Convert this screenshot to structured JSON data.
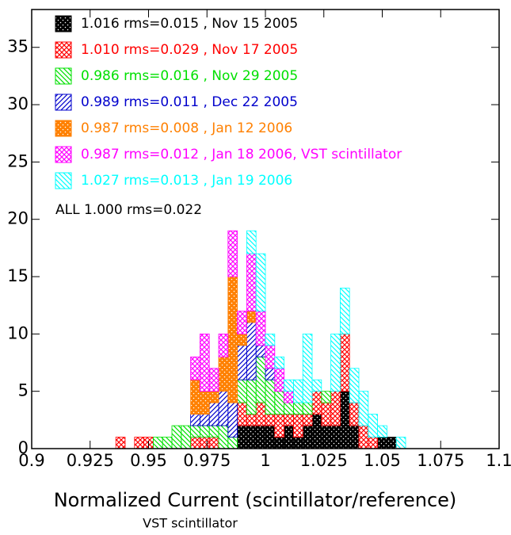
{
  "chart_data": {
    "type": "histogram",
    "xlabel": "Normalized Current (scintillator/reference)",
    "subtitle": "VST scintillator",
    "annotation": "ALL 1.000  rms=0.022",
    "stacked": true,
    "xlim": [
      0.9,
      1.1
    ],
    "ylim": [
      0,
      38.3
    ],
    "xticks": [
      0.9,
      0.925,
      0.95,
      0.975,
      1,
      1.025,
      1.05,
      1.075,
      1.1
    ],
    "yticks": [
      0,
      5,
      10,
      15,
      20,
      25,
      30,
      35
    ],
    "bins": [
      0.936,
      0.94,
      0.944,
      0.948,
      0.952,
      0.956,
      0.96,
      0.964,
      0.968,
      0.972,
      0.976,
      0.98,
      0.984,
      0.988,
      0.992,
      0.996,
      1.0,
      1.004,
      1.008,
      1.012,
      1.016,
      1.02,
      1.024,
      1.028,
      1.032,
      1.036,
      1.04,
      1.044,
      1.048,
      1.052,
      1.056,
      1.06
    ],
    "series": [
      {
        "name": "1.016  rms=0.015 , Nov 15 2005",
        "color": "#000000",
        "hatch": "dots",
        "values": [
          0,
          0,
          0,
          0,
          0,
          0,
          0,
          0,
          0,
          0,
          0,
          0,
          0,
          2,
          2,
          2,
          2,
          1,
          2,
          1,
          2,
          3,
          2,
          2,
          5,
          2,
          0,
          0,
          1,
          1,
          0
        ]
      },
      {
        "name": "1.010  rms=0.029 , Nov 17 2005",
        "color": "#ff0000",
        "hatch": "cross",
        "values": [
          1,
          0,
          1,
          1,
          0,
          0,
          0,
          0,
          1,
          1,
          1,
          0,
          0,
          2,
          1,
          2,
          1,
          2,
          1,
          2,
          1,
          2,
          2,
          3,
          5,
          2,
          2,
          1,
          0,
          0,
          0
        ]
      },
      {
        "name": "0.986  rms=0.016 , Nov 29 2005",
        "color": "#00e000",
        "hatch": "back",
        "values": [
          0,
          0,
          0,
          0,
          1,
          1,
          2,
          2,
          1,
          1,
          1,
          2,
          1,
          2,
          3,
          4,
          3,
          2,
          1,
          1,
          1,
          0,
          1,
          0,
          0,
          0,
          0,
          0,
          0,
          0,
          0
        ]
      },
      {
        "name": "0.989  rms=0.011 , Dec 22 2005",
        "color": "#0000cc",
        "hatch": "fwd",
        "values": [
          0,
          0,
          0,
          0,
          0,
          0,
          0,
          0,
          1,
          1,
          2,
          3,
          3,
          3,
          5,
          1,
          1,
          0,
          0,
          0,
          0,
          0,
          0,
          0,
          0,
          0,
          0,
          0,
          0,
          0,
          0
        ]
      },
      {
        "name": "0.987  rms=0.008 , Jan 12 2006",
        "color": "#ff8000",
        "hatch": "dots",
        "values": [
          0,
          0,
          0,
          0,
          0,
          0,
          0,
          0,
          3,
          2,
          1,
          3,
          11,
          1,
          1,
          0,
          0,
          0,
          0,
          0,
          0,
          0,
          0,
          0,
          0,
          0,
          0,
          0,
          0,
          0,
          0
        ]
      },
      {
        "name": "0.987  rms=0.012 , Jan 18 2006, VST scintillator",
        "color": "#ff00ff",
        "hatch": "cross",
        "values": [
          0,
          0,
          0,
          0,
          0,
          0,
          0,
          0,
          2,
          5,
          2,
          2,
          4,
          2,
          5,
          3,
          2,
          2,
          1,
          0,
          0,
          0,
          0,
          0,
          0,
          0,
          0,
          0,
          0,
          0,
          0
        ]
      },
      {
        "name": "1.027  rms=0.013 , Jan 19 2006",
        "color": "#00ffff",
        "hatch": "back",
        "values": [
          0,
          0,
          0,
          0,
          0,
          0,
          0,
          0,
          0,
          0,
          0,
          0,
          0,
          0,
          2,
          5,
          1,
          1,
          1,
          2,
          6,
          1,
          0,
          5,
          4,
          3,
          3,
          2,
          1,
          0,
          1
        ]
      }
    ]
  }
}
